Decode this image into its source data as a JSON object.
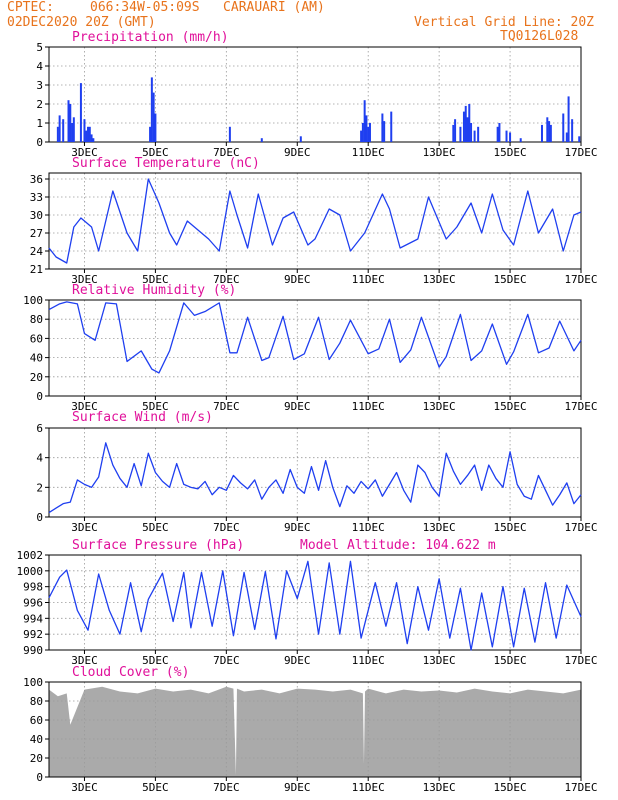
{
  "header": {
    "source": "CPTEC:",
    "location": "066:34W-05:09S   CARAUARI (AM)",
    "run": "02DEC2020 20Z (GMT)",
    "grid_note": "Vertical Grid Line: 20Z",
    "code": "TQ0126L028"
  },
  "x_axis": {
    "labels": [
      "3DEC",
      "5DEC",
      "7DEC",
      "9DEC",
      "11DEC",
      "13DEC",
      "15DEC",
      "17DEC"
    ],
    "label_days": [
      3,
      5,
      7,
      9,
      11,
      13,
      15,
      17
    ],
    "range_days": [
      2.0,
      17.0
    ],
    "unit": "day of December 2020, 1-hourly steps"
  },
  "colors": {
    "header": "#e8731c",
    "title": "#e0109a",
    "series": "#1f3ff0",
    "cloud": "#aaaaaa",
    "grid": "#9a9a9a"
  },
  "chart_data": [
    {
      "type": "bar",
      "title": "Precipitation (mm/h)",
      "ylim": [
        0,
        5
      ],
      "yticks": [
        0,
        1,
        2,
        3,
        4,
        5
      ],
      "grid": true,
      "x": [
        2.25,
        2.3,
        2.4,
        2.55,
        2.58,
        2.6,
        2.65,
        2.7,
        2.9,
        3.0,
        3.05,
        3.1,
        3.15,
        3.2,
        3.25,
        4.85,
        4.9,
        4.95,
        5.0,
        7.1,
        8.0,
        9.1,
        10.8,
        10.85,
        10.9,
        10.95,
        11.0,
        11.05,
        11.4,
        11.45,
        11.65,
        13.4,
        13.45,
        13.6,
        13.7,
        13.75,
        13.8,
        13.85,
        13.9,
        14.0,
        14.1,
        14.65,
        14.7,
        14.9,
        15.0,
        15.3,
        15.9,
        16.05,
        16.1,
        16.15,
        16.5,
        16.6,
        16.65,
        16.75,
        16.95
      ],
      "values": [
        0.8,
        1.4,
        1.2,
        2.2,
        1.5,
        2.0,
        1.0,
        1.3,
        3.1,
        1.2,
        0.6,
        0.8,
        0.8,
        0.4,
        0.2,
        0.8,
        3.4,
        2.6,
        1.5,
        0.8,
        0.2,
        0.3,
        0.6,
        1.0,
        2.2,
        1.4,
        0.8,
        1.0,
        1.5,
        1.1,
        1.6,
        0.9,
        1.2,
        0.8,
        1.6,
        1.9,
        1.3,
        2.0,
        1.0,
        0.6,
        0.8,
        0.8,
        1.0,
        0.6,
        0.5,
        0.2,
        0.9,
        1.3,
        1.1,
        0.9,
        1.5,
        0.5,
        2.4,
        1.2,
        0.3
      ]
    },
    {
      "type": "line",
      "title": "Surface Temperature (nC)",
      "ylim": [
        21,
        37
      ],
      "yticks": [
        21,
        24,
        27,
        30,
        33,
        36
      ],
      "grid": true,
      "x": [
        2.0,
        2.2,
        2.5,
        2.7,
        2.9,
        3.2,
        3.4,
        3.8,
        4.2,
        4.5,
        4.8,
        5.1,
        5.4,
        5.6,
        5.9,
        6.2,
        6.5,
        6.8,
        7.1,
        7.3,
        7.6,
        7.9,
        8.3,
        8.6,
        8.9,
        9.3,
        9.5,
        9.9,
        10.2,
        10.5,
        10.9,
        11.4,
        11.6,
        11.9,
        12.4,
        12.7,
        13.2,
        13.5,
        13.9,
        14.2,
        14.5,
        14.8,
        15.1,
        15.5,
        15.8,
        16.2,
        16.5,
        16.8,
        17.0
      ],
      "values": [
        24.5,
        23,
        22,
        28,
        29.5,
        28,
        24,
        34,
        27,
        24,
        36,
        32,
        27,
        25,
        29,
        27.5,
        26,
        24,
        34,
        30,
        24.5,
        33.5,
        25,
        29.5,
        30.5,
        25,
        26,
        31,
        30,
        24,
        27,
        33.5,
        31,
        24.5,
        26,
        33,
        26,
        28,
        32,
        27,
        33.5,
        27.5,
        25,
        34,
        27,
        31,
        24,
        30,
        30.5
      ]
    },
    {
      "type": "line",
      "title": "Relative Humidity (%)",
      "ylim": [
        0,
        100
      ],
      "yticks": [
        0,
        20,
        40,
        60,
        80,
        100
      ],
      "grid": true,
      "x": [
        2.0,
        2.3,
        2.5,
        2.8,
        3.0,
        3.3,
        3.6,
        3.9,
        4.2,
        4.6,
        4.9,
        5.1,
        5.4,
        5.8,
        6.1,
        6.4,
        6.8,
        7.1,
        7.3,
        7.6,
        8.0,
        8.2,
        8.6,
        8.9,
        9.2,
        9.6,
        9.9,
        10.2,
        10.5,
        11.0,
        11.3,
        11.6,
        11.9,
        12.2,
        12.5,
        13.0,
        13.2,
        13.6,
        13.9,
        14.2,
        14.5,
        14.9,
        15.1,
        15.5,
        15.8,
        16.1,
        16.4,
        16.8,
        17.0
      ],
      "values": [
        90,
        96,
        98,
        96,
        65,
        58,
        97,
        96,
        36,
        47,
        28,
        24,
        47,
        97,
        84,
        88,
        97,
        45,
        45,
        82,
        37,
        40,
        83,
        38,
        44,
        82,
        38,
        55,
        79,
        44,
        49,
        80,
        35,
        48,
        82,
        30,
        41,
        85,
        37,
        47,
        75,
        33,
        46,
        85,
        45,
        50,
        78,
        47,
        58
      ]
    },
    {
      "type": "line",
      "title": "Surface Wind (m/s)",
      "ylim": [
        0,
        6
      ],
      "yticks": [
        0,
        2,
        4,
        6
      ],
      "grid": true,
      "x": [
        2.0,
        2.2,
        2.4,
        2.6,
        2.8,
        3.0,
        3.2,
        3.4,
        3.6,
        3.8,
        4.0,
        4.2,
        4.4,
        4.6,
        4.8,
        5.0,
        5.2,
        5.4,
        5.6,
        5.8,
        6.0,
        6.2,
        6.4,
        6.6,
        6.8,
        7.0,
        7.2,
        7.4,
        7.6,
        7.8,
        8.0,
        8.2,
        8.4,
        8.6,
        8.8,
        9.0,
        9.2,
        9.4,
        9.6,
        9.8,
        10.0,
        10.2,
        10.4,
        10.6,
        10.8,
        11.0,
        11.2,
        11.4,
        11.6,
        11.8,
        12.0,
        12.2,
        12.4,
        12.6,
        12.8,
        13.0,
        13.2,
        13.4,
        13.6,
        13.8,
        14.0,
        14.2,
        14.4,
        14.6,
        14.8,
        15.0,
        15.2,
        15.4,
        15.6,
        15.8,
        16.0,
        16.2,
        16.4,
        16.6,
        16.8,
        17.0
      ],
      "values": [
        0.3,
        0.6,
        0.9,
        1.0,
        2.5,
        2.2,
        2.0,
        2.7,
        5.0,
        3.5,
        2.6,
        2.0,
        3.6,
        2.1,
        4.3,
        3.0,
        2.4,
        2.0,
        3.6,
        2.2,
        2.0,
        1.9,
        2.4,
        1.5,
        2.0,
        1.8,
        2.8,
        2.3,
        1.9,
        2.5,
        1.2,
        2.0,
        2.5,
        1.6,
        3.2,
        2.0,
        1.6,
        3.4,
        1.8,
        3.8,
        2.0,
        0.7,
        2.1,
        1.6,
        2.4,
        1.9,
        2.5,
        1.4,
        2.2,
        3.0,
        1.8,
        1.0,
        3.5,
        3.0,
        2.0,
        1.4,
        4.3,
        3.1,
        2.2,
        2.8,
        3.5,
        1.8,
        3.5,
        2.6,
        2.0,
        4.4,
        2.2,
        1.4,
        1.2,
        2.8,
        1.8,
        0.8,
        1.5,
        2.3,
        0.9,
        1.5
      ]
    },
    {
      "type": "line",
      "title": "Surface Pressure (hPa)",
      "annotation": "Model Altitude: 104.622 m",
      "ylim": [
        990,
        1002
      ],
      "yticks": [
        990,
        992,
        994,
        996,
        998,
        1000,
        1002
      ],
      "grid": true,
      "x": [
        2.0,
        2.3,
        2.5,
        2.8,
        3.1,
        3.4,
        3.7,
        4.0,
        4.3,
        4.6,
        4.8,
        5.2,
        5.5,
        5.8,
        6.0,
        6.3,
        6.6,
        6.9,
        7.2,
        7.5,
        7.8,
        8.1,
        8.4,
        8.7,
        9.0,
        9.3,
        9.6,
        9.9,
        10.2,
        10.5,
        10.8,
        11.2,
        11.5,
        11.8,
        12.1,
        12.4,
        12.7,
        13.0,
        13.3,
        13.6,
        13.9,
        14.2,
        14.5,
        14.8,
        15.1,
        15.4,
        15.7,
        16.0,
        16.3,
        16.6,
        17.0
      ],
      "values": [
        996.6,
        999.2,
        1000.1,
        995,
        992.5,
        999.6,
        995,
        992,
        998.5,
        992.3,
        996.4,
        999.7,
        993.6,
        999.8,
        992.8,
        999.8,
        993,
        1000,
        991.8,
        999.8,
        992.6,
        999.9,
        991.4,
        1000,
        996.5,
        1001.2,
        992,
        1001,
        992,
        1001.2,
        991.5,
        998.5,
        993,
        998.5,
        990.8,
        998,
        992.5,
        999,
        991.5,
        997.8,
        990,
        997.2,
        990.4,
        998,
        990.4,
        997.8,
        991,
        998.5,
        991.5,
        998.2,
        994.2
      ]
    },
    {
      "type": "area",
      "title": "Cloud Cover (%)",
      "ylim": [
        0,
        100
      ],
      "yticks": [
        0,
        20,
        40,
        60,
        80,
        100
      ],
      "grid": true,
      "x": [
        2.0,
        2.25,
        2.5,
        2.6,
        3.0,
        3.5,
        4.0,
        4.5,
        5.0,
        5.5,
        6.0,
        6.5,
        7.0,
        7.2,
        7.27,
        7.3,
        7.5,
        8.0,
        8.5,
        9.0,
        9.5,
        10.0,
        10.5,
        10.85,
        10.88,
        10.91,
        11.0,
        11.5,
        12.0,
        12.5,
        13.0,
        13.5,
        14.0,
        14.5,
        15.0,
        15.5,
        16.0,
        16.5,
        17.0
      ],
      "values": [
        92,
        85,
        88,
        55,
        92,
        95,
        90,
        88,
        93,
        90,
        92,
        88,
        95,
        93,
        2,
        93,
        90,
        92,
        88,
        93,
        92,
        90,
        92,
        88,
        14,
        90,
        93,
        88,
        92,
        90,
        91,
        89,
        93,
        90,
        88,
        92,
        90,
        88,
        92
      ]
    }
  ]
}
